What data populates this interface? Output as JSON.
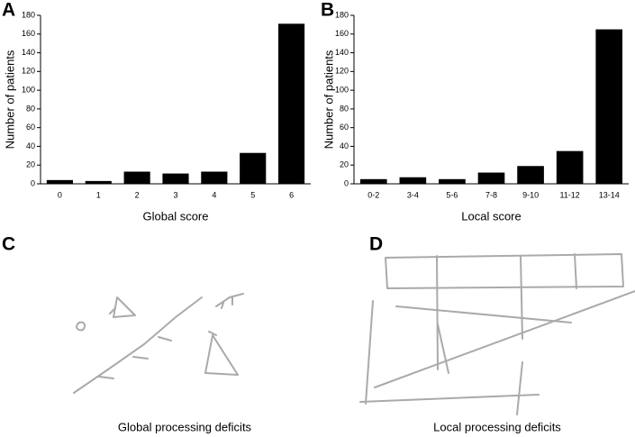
{
  "chart_data": [
    {
      "type": "bar",
      "panel_label": "A",
      "categories": [
        "0",
        "1",
        "2",
        "3",
        "4",
        "5",
        "6"
      ],
      "values": [
        4,
        3,
        13,
        11,
        13,
        33,
        171
      ],
      "color": "#000000",
      "ylim": [
        0,
        180
      ],
      "yticks": [
        0,
        20,
        40,
        60,
        80,
        100,
        120,
        140,
        160,
        180
      ],
      "xlabel": "Global score",
      "ylabel": "Number of patients"
    },
    {
      "type": "bar",
      "panel_label": "B",
      "categories": [
        "0-2",
        "3-4",
        "5-6",
        "7-8",
        "9-10",
        "11-12",
        "13-14"
      ],
      "values": [
        5,
        7,
        5,
        12,
        19,
        35,
        165
      ],
      "color": "#000000",
      "ylim": [
        0,
        180
      ],
      "yticks": [
        0,
        20,
        40,
        60,
        80,
        100,
        120,
        140,
        160,
        180
      ],
      "xlabel": "Local score",
      "ylabel": "Number of patients"
    }
  ],
  "panels": [
    {
      "label": "C",
      "caption": "Global processing deficits"
    },
    {
      "label": "D",
      "caption": "Local processing deficits"
    }
  ]
}
